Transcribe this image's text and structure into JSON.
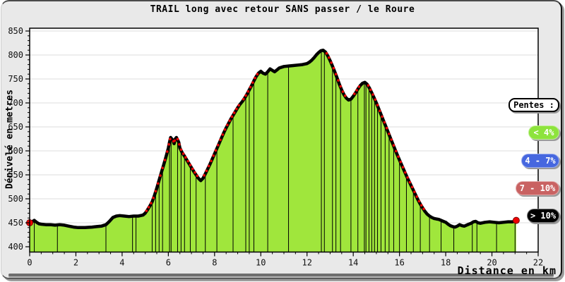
{
  "chart_data": {
    "type": "area",
    "title": "TRAIL long avec retour SANS passer / le Roure",
    "xlabel": "Distance en km",
    "ylabel": "Dénivelé en metres",
    "xlim": [
      0,
      22
    ],
    "ylim": [
      400,
      850
    ],
    "xticks": [
      0,
      2,
      4,
      6,
      8,
      10,
      12,
      14,
      16,
      18,
      20,
      22
    ],
    "yticks": [
      400,
      450,
      500,
      550,
      600,
      650,
      700,
      750,
      800,
      850
    ],
    "x_minor_step": 0.5,
    "y_minor_step": 10,
    "grid": "horizontal",
    "gridline_color": "#DCDCDC",
    "plot_bg_color": "#FFFFFF",
    "fill_color": "#A0E63C",
    "line_color": "#000000",
    "steep_dot_color": "#E60000",
    "steep_grade_threshold_pct": 6.5,
    "endpoint_color": "#F00000",
    "profile": [
      [
        0,
        450
      ],
      [
        0.1,
        452
      ],
      [
        0.2,
        455
      ],
      [
        0.3,
        451
      ],
      [
        0.4,
        448
      ],
      [
        0.5,
        447
      ],
      [
        0.7,
        446
      ],
      [
        0.9,
        446
      ],
      [
        1.1,
        445
      ],
      [
        1.3,
        446
      ],
      [
        1.5,
        445
      ],
      [
        1.7,
        443
      ],
      [
        1.9,
        441
      ],
      [
        2.1,
        440
      ],
      [
        2.4,
        440
      ],
      [
        2.7,
        441
      ],
      [
        2.9,
        442
      ],
      [
        3.1,
        443
      ],
      [
        3.3,
        446
      ],
      [
        3.45,
        453
      ],
      [
        3.6,
        461
      ],
      [
        3.75,
        464
      ],
      [
        3.9,
        465
      ],
      [
        4.1,
        464
      ],
      [
        4.3,
        463
      ],
      [
        4.5,
        464
      ],
      [
        4.7,
        464
      ],
      [
        4.9,
        466
      ],
      [
        5.0,
        470
      ],
      [
        5.1,
        477
      ],
      [
        5.2,
        485
      ],
      [
        5.3,
        494
      ],
      [
        5.4,
        507
      ],
      [
        5.5,
        522
      ],
      [
        5.6,
        539
      ],
      [
        5.7,
        555
      ],
      [
        5.8,
        571
      ],
      [
        5.9,
        588
      ],
      [
        6.0,
        606
      ],
      [
        6.05,
        618
      ],
      [
        6.1,
        628
      ],
      [
        6.2,
        622
      ],
      [
        6.25,
        615
      ],
      [
        6.3,
        625
      ],
      [
        6.35,
        628
      ],
      [
        6.45,
        618
      ],
      [
        6.5,
        606
      ],
      [
        6.6,
        596
      ],
      [
        6.7,
        589
      ],
      [
        6.8,
        581
      ],
      [
        6.9,
        573
      ],
      [
        7.0,
        565
      ],
      [
        7.1,
        557
      ],
      [
        7.2,
        550
      ],
      [
        7.3,
        543
      ],
      [
        7.4,
        538
      ],
      [
        7.5,
        543
      ],
      [
        7.6,
        552
      ],
      [
        7.7,
        562
      ],
      [
        7.8,
        572
      ],
      [
        7.9,
        583
      ],
      [
        8.0,
        594
      ],
      [
        8.1,
        605
      ],
      [
        8.2,
        616
      ],
      [
        8.3,
        627
      ],
      [
        8.4,
        638
      ],
      [
        8.5,
        648
      ],
      [
        8.6,
        657
      ],
      [
        8.7,
        666
      ],
      [
        8.8,
        674
      ],
      [
        8.9,
        682
      ],
      [
        9.0,
        690
      ],
      [
        9.1,
        697
      ],
      [
        9.2,
        703
      ],
      [
        9.3,
        710
      ],
      [
        9.4,
        718
      ],
      [
        9.5,
        727
      ],
      [
        9.6,
        736
      ],
      [
        9.7,
        746
      ],
      [
        9.8,
        755
      ],
      [
        9.9,
        762
      ],
      [
        10.0,
        766
      ],
      [
        10.1,
        762
      ],
      [
        10.2,
        760
      ],
      [
        10.3,
        765
      ],
      [
        10.4,
        771
      ],
      [
        10.5,
        768
      ],
      [
        10.6,
        765
      ],
      [
        10.7,
        769
      ],
      [
        10.8,
        773
      ],
      [
        11.0,
        776
      ],
      [
        11.2,
        777
      ],
      [
        11.4,
        778
      ],
      [
        11.6,
        779
      ],
      [
        11.8,
        780
      ],
      [
        12.0,
        782
      ],
      [
        12.1,
        785
      ],
      [
        12.2,
        789
      ],
      [
        12.3,
        794
      ],
      [
        12.4,
        800
      ],
      [
        12.5,
        805
      ],
      [
        12.6,
        809
      ],
      [
        12.7,
        810
      ],
      [
        12.8,
        806
      ],
      [
        12.9,
        798
      ],
      [
        13.0,
        788
      ],
      [
        13.1,
        777
      ],
      [
        13.2,
        765
      ],
      [
        13.3,
        752
      ],
      [
        13.4,
        739
      ],
      [
        13.5,
        727
      ],
      [
        13.6,
        717
      ],
      [
        13.7,
        710
      ],
      [
        13.8,
        706
      ],
      [
        13.9,
        708
      ],
      [
        14.0,
        714
      ],
      [
        14.1,
        721
      ],
      [
        14.2,
        729
      ],
      [
        14.3,
        736
      ],
      [
        14.4,
        741
      ],
      [
        14.5,
        743
      ],
      [
        14.6,
        739
      ],
      [
        14.7,
        731
      ],
      [
        14.8,
        721
      ],
      [
        14.9,
        711
      ],
      [
        15.0,
        700
      ],
      [
        15.1,
        688
      ],
      [
        15.2,
        676
      ],
      [
        15.3,
        664
      ],
      [
        15.4,
        652
      ],
      [
        15.5,
        640
      ],
      [
        15.6,
        628
      ],
      [
        15.7,
        616
      ],
      [
        15.8,
        604
      ],
      [
        15.9,
        592
      ],
      [
        16.0,
        581
      ],
      [
        16.1,
        570
      ],
      [
        16.2,
        559
      ],
      [
        16.3,
        548
      ],
      [
        16.4,
        538
      ],
      [
        16.5,
        528
      ],
      [
        16.6,
        518
      ],
      [
        16.7,
        508
      ],
      [
        16.8,
        498
      ],
      [
        16.9,
        489
      ],
      [
        17.0,
        481
      ],
      [
        17.1,
        474
      ],
      [
        17.2,
        468
      ],
      [
        17.3,
        464
      ],
      [
        17.4,
        461
      ],
      [
        17.5,
        459
      ],
      [
        17.6,
        458
      ],
      [
        17.7,
        457
      ],
      [
        17.8,
        455
      ],
      [
        17.9,
        453
      ],
      [
        18.0,
        451
      ],
      [
        18.1,
        447
      ],
      [
        18.2,
        444
      ],
      [
        18.3,
        442
      ],
      [
        18.4,
        441
      ],
      [
        18.5,
        443
      ],
      [
        18.6,
        446
      ],
      [
        18.7,
        444
      ],
      [
        18.8,
        443
      ],
      [
        18.9,
        445
      ],
      [
        19.0,
        447
      ],
      [
        19.1,
        449
      ],
      [
        19.2,
        452
      ],
      [
        19.3,
        453
      ],
      [
        19.4,
        450
      ],
      [
        19.5,
        449
      ],
      [
        19.7,
        451
      ],
      [
        19.9,
        452
      ],
      [
        20.1,
        451
      ],
      [
        20.3,
        450
      ],
      [
        20.5,
        451
      ],
      [
        20.7,
        452
      ],
      [
        20.9,
        452
      ],
      [
        21.05,
        455
      ]
    ],
    "segment_lines_km": [
      0.2,
      1.2,
      3.3,
      4.45,
      4.6,
      5.3,
      5.45,
      5.6,
      5.75,
      6.05,
      6.12,
      6.4,
      6.55,
      6.7,
      6.95,
      7.2,
      7.6,
      8.1,
      8.8,
      9.35,
      9.5,
      9.7,
      10.3,
      11.2,
      12.62,
      12.75,
      13.1,
      13.25,
      13.45,
      13.9,
      14.2,
      14.48,
      14.55,
      14.68,
      14.8,
      14.92,
      15.05,
      15.2,
      15.38,
      15.55,
      15.75,
      16.0,
      16.3,
      16.6,
      16.9,
      17.3,
      17.8,
      18.35,
      19.15,
      19.35,
      20.2,
      21.0
    ],
    "start_point": {
      "km": 0,
      "m": 450
    },
    "end_point": {
      "km": 21.05,
      "m": 455
    }
  },
  "legend": {
    "title": "Pentes :",
    "items": [
      {
        "label": "< 4%",
        "color": "#8DE33C"
      },
      {
        "label": "4 - 7%",
        "color": "#4667DF"
      },
      {
        "label": "7 - 10%",
        "color": "#C96262"
      },
      {
        "label": "> 10%",
        "color": "#000000"
      }
    ]
  }
}
